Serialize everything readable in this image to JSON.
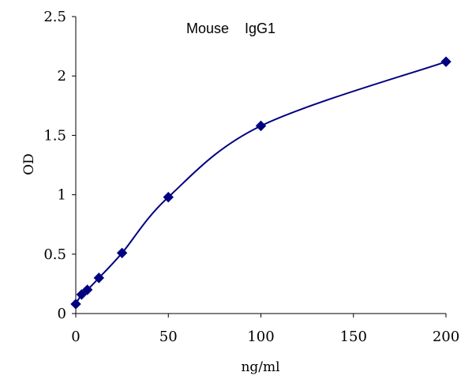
{
  "chart_data": {
    "type": "line",
    "title": "Mouse    IgG1",
    "xlabel": "ng/ml",
    "ylabel": "OD",
    "xlim": [
      0,
      200
    ],
    "ylim": [
      0,
      2.5
    ],
    "xticks": [
      0,
      50,
      100,
      150,
      200
    ],
    "yticks": [
      0,
      0.5,
      1,
      1.5,
      2,
      2.5
    ],
    "xtick_labels": [
      "0",
      "50",
      "100",
      "150",
      "200"
    ],
    "ytick_labels": [
      "0",
      "0.5",
      "1",
      "1.5",
      "2",
      "2.5"
    ],
    "grid": false,
    "legend": "none",
    "series": [
      {
        "marker": "diamond",
        "smooth": true,
        "color": "#000080",
        "x": [
          0,
          3.125,
          6.25,
          12.5,
          25,
          50,
          100,
          200
        ],
        "y": [
          0.08,
          0.16,
          0.2,
          0.3,
          0.51,
          0.98,
          1.58,
          2.12
        ]
      }
    ]
  }
}
